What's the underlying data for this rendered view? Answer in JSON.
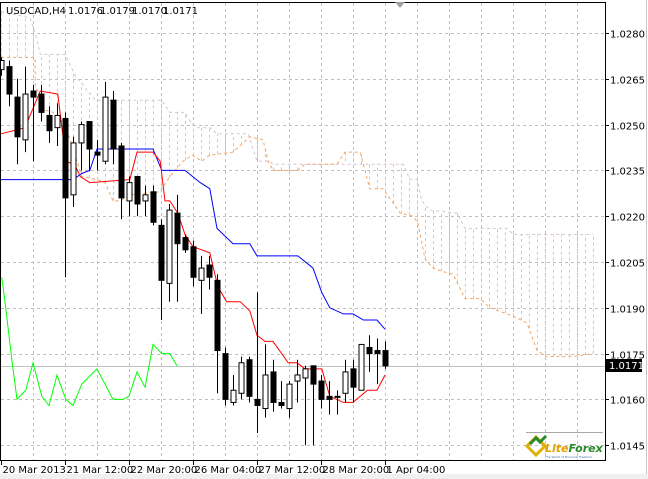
{
  "header": {
    "symbol": "USDCAD,H4",
    "open": "1.0176",
    "high": "1.0179",
    "low": "1.0170",
    "close": "1.0171"
  },
  "logo": {
    "text": "LiteForex",
    "tagline": "The World of Financial Freedom"
  },
  "colors": {
    "bull_body": "#ffffff",
    "bear_body": "#000000",
    "tenkan": "#ff0000",
    "kijun": "#0000ff",
    "chikou": "#00ff00",
    "senkou_a": "#f4a460",
    "senkou_b": "#d8c0d8",
    "grid": "#c0c0c0",
    "price_line": "#c0c0c0"
  },
  "chart_data": {
    "type": "candlestick",
    "title": "USDCAD,H4",
    "ylim": [
      1.014,
      1.029
    ],
    "grid": true,
    "y_ticks": [
      "1.0280",
      "1.0265",
      "1.0250",
      "1.0235",
      "1.0220",
      "1.0205",
      "1.0190",
      "1.0175",
      "1.0160",
      "1.0145"
    ],
    "x_ticks": [
      {
        "label": "20 Mar 2013",
        "index": 0
      },
      {
        "label": "21 Mar 12:00",
        "index": 8
      },
      {
        "label": "22 Mar 20:00",
        "index": 16
      },
      {
        "label": "26 Mar 04:00",
        "index": 24
      },
      {
        "label": "27 Mar 12:00",
        "index": 32
      },
      {
        "label": "28 Mar 20:00",
        "index": 40
      },
      {
        "label": "1 Apr 04:00",
        "index": 48
      }
    ],
    "current_price": "1.0171",
    "candles_ohlc": [
      [
        1.0268,
        1.0272,
        1.0266,
        1.0271
      ],
      [
        1.0269,
        1.0271,
        1.0256,
        1.026
      ],
      [
        1.0259,
        1.0265,
        1.0237,
        1.0246
      ],
      [
        1.0245,
        1.0269,
        1.0241,
        1.026
      ],
      [
        1.0261,
        1.0263,
        1.0238,
        1.0259
      ],
      [
        1.026,
        1.0263,
        1.0251,
        1.0254
      ],
      [
        1.0253,
        1.0256,
        1.0244,
        1.0248
      ],
      [
        1.0249,
        1.0257,
        1.0243,
        1.0253
      ],
      [
        1.0252,
        1.0254,
        1.02,
        1.0226
      ],
      [
        1.0227,
        1.0246,
        1.0223,
        1.0244
      ],
      [
        1.0244,
        1.0251,
        1.0235,
        1.025
      ],
      [
        1.0251,
        1.0251,
        1.0235,
        1.0242
      ],
      [
        1.0241,
        1.0245,
        1.0235,
        1.024
      ],
      [
        1.0238,
        1.0264,
        1.0237,
        1.0259
      ],
      [
        1.0258,
        1.0261,
        1.0237,
        1.0242
      ],
      [
        1.0243,
        1.0244,
        1.0219,
        1.0226
      ],
      [
        1.0225,
        1.0233,
        1.022,
        1.0231
      ],
      [
        1.0233,
        1.0233,
        1.022,
        1.0224
      ],
      [
        1.0225,
        1.023,
        1.022,
        1.0227
      ],
      [
        1.0228,
        1.023,
        1.0217,
        1.0218
      ],
      [
        1.0217,
        1.0219,
        1.0186,
        1.0199
      ],
      [
        1.0198,
        1.0224,
        1.0192,
        1.0222
      ],
      [
        1.0221,
        1.0227,
        1.0192,
        1.0211
      ],
      [
        1.0213,
        1.0214,
        1.0208,
        1.0209
      ],
      [
        1.021,
        1.0212,
        1.0197,
        1.02
      ],
      [
        1.0199,
        1.0207,
        1.0188,
        1.0203
      ],
      [
        1.0204,
        1.0207,
        1.0196,
        1.02
      ],
      [
        1.0199,
        1.0201,
        1.0162,
        1.0176
      ],
      [
        1.0175,
        1.0177,
        1.0158,
        1.016
      ],
      [
        1.0159,
        1.0168,
        1.0158,
        1.0163
      ],
      [
        1.0162,
        1.0174,
        1.016,
        1.0172
      ],
      [
        1.0173,
        1.0174,
        1.0159,
        1.0161
      ],
      [
        1.016,
        1.0195,
        1.0149,
        1.0158
      ],
      [
        1.0157,
        1.0178,
        1.0154,
        1.0168
      ],
      [
        1.0169,
        1.0173,
        1.0156,
        1.0159
      ],
      [
        1.0159,
        1.0166,
        1.0157,
        1.0158
      ],
      [
        1.0157,
        1.0166,
        1.0154,
        1.0165
      ],
      [
        1.0166,
        1.0173,
        1.0159,
        1.0168
      ],
      [
        1.0167,
        1.0171,
        1.0145,
        1.017
      ],
      [
        1.0171,
        1.0171,
        1.0145,
        1.0165
      ],
      [
        1.0166,
        1.0168,
        1.0157,
        1.016
      ],
      [
        1.0161,
        1.0166,
        1.0155,
        1.016
      ],
      [
        1.0161,
        1.0163,
        1.0155,
        1.0161
      ],
      [
        1.0162,
        1.0173,
        1.0159,
        1.0169
      ],
      [
        1.017,
        1.0173,
        1.0159,
        1.0164
      ],
      [
        1.0163,
        1.0178,
        1.0163,
        1.0178
      ],
      [
        1.0177,
        1.0181,
        1.0169,
        1.0175
      ],
      [
        1.0176,
        1.018,
        1.0165,
        1.0175
      ],
      [
        1.0176,
        1.0179,
        1.017,
        1.0171
      ]
    ],
    "tenkan": [
      [
        0,
        1.0247
      ],
      [
        3,
        1.0249
      ],
      [
        4.9,
        1.0261
      ],
      [
        7.1,
        1.026
      ],
      [
        7.8,
        1.0245
      ],
      [
        8,
        1.0238
      ],
      [
        9.2,
        1.0237
      ],
      [
        9.9,
        1.0233
      ],
      [
        11.1,
        1.0231
      ],
      [
        16.1,
        1.0232
      ],
      [
        17,
        1.0241
      ],
      [
        19,
        1.0241
      ],
      [
        19.9,
        1.0238
      ],
      [
        20.5,
        1.0225
      ],
      [
        21.1,
        1.0225
      ],
      [
        22.1,
        1.0221
      ],
      [
        23,
        1.0214
      ],
      [
        24,
        1.021
      ],
      [
        26.1,
        1.0208
      ],
      [
        27.1,
        1.0197
      ],
      [
        28.2,
        1.0192
      ],
      [
        29.9,
        1.0192
      ],
      [
        31.1,
        1.0189
      ],
      [
        32,
        1.0181
      ],
      [
        33,
        1.0179
      ],
      [
        34,
        1.0179
      ],
      [
        35.9,
        1.0172
      ],
      [
        37,
        1.0172
      ],
      [
        38,
        1.017
      ],
      [
        40.1,
        1.017
      ],
      [
        41.1,
        1.0161
      ],
      [
        42.8,
        1.0159
      ],
      [
        44,
        1.0159
      ],
      [
        45.8,
        1.0163
      ],
      [
        47,
        1.0163
      ],
      [
        48,
        1.0168
      ]
    ],
    "kijun": [
      [
        0,
        1.0232
      ],
      [
        9,
        1.0232
      ],
      [
        10.1,
        1.0234
      ],
      [
        11.1,
        1.0235
      ],
      [
        12,
        1.0242
      ],
      [
        19,
        1.0242
      ],
      [
        20.1,
        1.0235
      ],
      [
        23,
        1.0235
      ],
      [
        24.9,
        1.0231
      ],
      [
        26.1,
        1.0229
      ],
      [
        27,
        1.0216
      ],
      [
        29,
        1.0211
      ],
      [
        31.1,
        1.0211
      ],
      [
        32,
        1.0207
      ],
      [
        37.1,
        1.0207
      ],
      [
        39,
        1.0203
      ],
      [
        40.1,
        1.0195
      ],
      [
        41.1,
        1.019
      ],
      [
        42.8,
        1.0188
      ],
      [
        44,
        1.0188
      ],
      [
        45.3,
        1.0186
      ],
      [
        47,
        1.0186
      ],
      [
        48,
        1.0183
      ]
    ],
    "chikou": [
      [
        0.1,
        1.02
      ],
      [
        0.5,
        1.0192
      ],
      [
        1.4,
        1.0172
      ],
      [
        2,
        1.016
      ],
      [
        3.1,
        1.0163
      ],
      [
        4,
        1.0172
      ],
      [
        5.1,
        1.0161
      ],
      [
        6,
        1.0158
      ],
      [
        7,
        1.0168
      ],
      [
        8.1,
        1.016
      ],
      [
        9,
        1.0158
      ],
      [
        10.1,
        1.0165
      ],
      [
        12,
        1.017
      ],
      [
        14,
        1.016
      ],
      [
        15.25,
        1.016
      ],
      [
        16,
        1.0161
      ],
      [
        17,
        1.0169
      ],
      [
        18,
        1.0164
      ],
      [
        19,
        1.0178
      ],
      [
        20.1,
        1.0175
      ],
      [
        21.1,
        1.0175
      ],
      [
        22,
        1.0171
      ]
    ],
    "senkou_a": [
      [
        0,
        1.0272
      ],
      [
        4.25,
        1.0272
      ],
      [
        4.3,
        1.0262
      ],
      [
        4.6,
        1.0261
      ],
      [
        5.25,
        1.0255
      ],
      [
        6.5,
        1.0254
      ],
      [
        7.4,
        1.0252
      ],
      [
        8.25,
        1.0248
      ],
      [
        9.5,
        1.0238
      ],
      [
        10.1,
        1.0233
      ],
      [
        12,
        1.0232
      ],
      [
        13,
        1.0231
      ],
      [
        14,
        1.0225
      ],
      [
        14.9,
        1.0225
      ],
      [
        16.1,
        1.0227
      ],
      [
        19.9,
        1.0228
      ],
      [
        20.1,
        1.0229
      ],
      [
        21.1,
        1.0233
      ],
      [
        22.75,
        1.0238
      ],
      [
        23.9,
        1.024
      ],
      [
        25.1,
        1.0238
      ],
      [
        26.1,
        1.024
      ],
      [
        29,
        1.0241
      ],
      [
        31.1,
        1.0246
      ],
      [
        32.75,
        1.0245
      ],
      [
        33.4,
        1.0238
      ],
      [
        34,
        1.0235
      ],
      [
        37.1,
        1.0235
      ],
      [
        38,
        1.0237
      ],
      [
        42,
        1.0237
      ],
      [
        43,
        1.0241
      ],
      [
        44.9,
        1.0241
      ],
      [
        46.1,
        1.0229
      ],
      [
        47.75,
        1.0229
      ],
      [
        49.9,
        1.0221
      ],
      [
        51.5,
        1.022
      ],
      [
        52.1,
        1.0218
      ],
      [
        53,
        1.0206
      ],
      [
        54,
        1.0203
      ],
      [
        55.1,
        1.0202
      ],
      [
        56.5,
        1.0201
      ],
      [
        58,
        1.0193
      ],
      [
        59.9,
        1.0193
      ],
      [
        61.1,
        1.019
      ],
      [
        63.25,
        1.0188
      ],
      [
        64.25,
        1.0187
      ],
      [
        65.75,
        1.0185
      ],
      [
        67,
        1.0176
      ],
      [
        68.25,
        1.0174
      ],
      [
        71.5,
        1.0174
      ],
      [
        74,
        1.0175
      ]
    ],
    "senkou_b": [
      [
        0,
        1.0287
      ],
      [
        3.6,
        1.0285
      ],
      [
        4.3,
        1.028
      ],
      [
        4.9,
        1.0273
      ],
      [
        8,
        1.0273
      ],
      [
        9.3,
        1.0266
      ],
      [
        11.8,
        1.0258
      ],
      [
        18.6,
        1.0258
      ],
      [
        20.1,
        1.0258
      ],
      [
        21.1,
        1.0254
      ],
      [
        23,
        1.0254
      ],
      [
        23.9,
        1.025
      ],
      [
        24.5,
        1.0249
      ],
      [
        26.1,
        1.0249
      ],
      [
        27,
        1.0247
      ],
      [
        30.9,
        1.0247
      ],
      [
        32,
        1.0238
      ],
      [
        33.6,
        1.0238
      ],
      [
        34,
        1.0237
      ],
      [
        50.3,
        1.0237
      ],
      [
        51.1,
        1.0232
      ],
      [
        52,
        1.0232
      ],
      [
        52.6,
        1.0225
      ],
      [
        53.6,
        1.0222
      ],
      [
        57,
        1.0221
      ],
      [
        58,
        1.0216
      ],
      [
        63.3,
        1.0216
      ],
      [
        64,
        1.0214
      ],
      [
        74,
        1.0214
      ]
    ]
  }
}
